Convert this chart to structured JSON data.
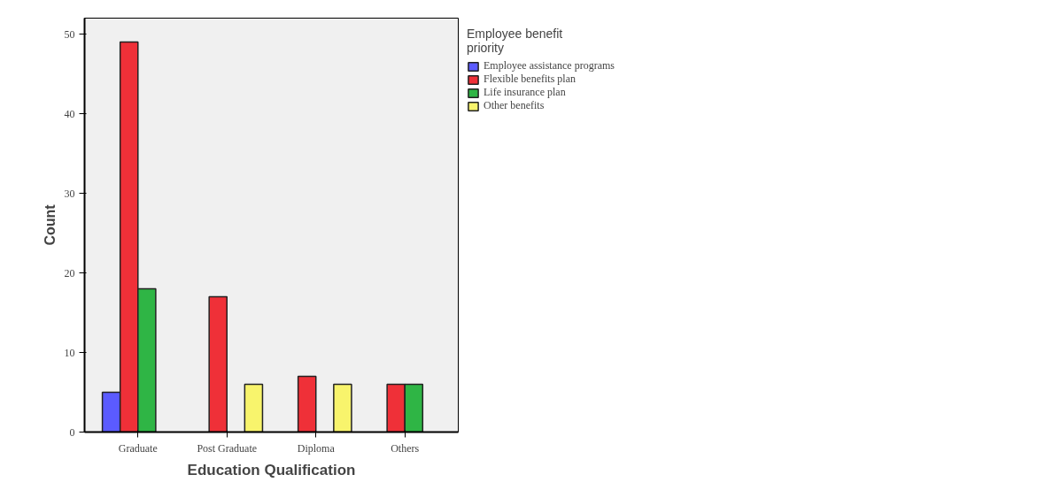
{
  "chart_data": {
    "type": "bar",
    "xlabel": "Education Qualification",
    "ylabel": "Count",
    "legend_title": "Employee benefit priority",
    "categories": [
      "Graduate",
      "Post Graduate",
      "Diploma",
      "Others"
    ],
    "series": [
      {
        "name": "Employee assistance programs",
        "color": "#5b5bff",
        "values": [
          5,
          null,
          null,
          null
        ]
      },
      {
        "name": "Flexible benefits plan",
        "color": "#ef3038",
        "values": [
          49,
          17,
          7,
          6
        ]
      },
      {
        "name": "Life insurance plan",
        "color": "#2fb545",
        "values": [
          18,
          null,
          null,
          6
        ]
      },
      {
        "name": "Other benefits",
        "color": "#f8f46c",
        "values": [
          null,
          6,
          6,
          null
        ]
      }
    ],
    "ylim": [
      0,
      52
    ],
    "yticks": [
      0,
      10,
      20,
      30,
      40,
      50
    ],
    "grid": false,
    "legend": "right"
  }
}
